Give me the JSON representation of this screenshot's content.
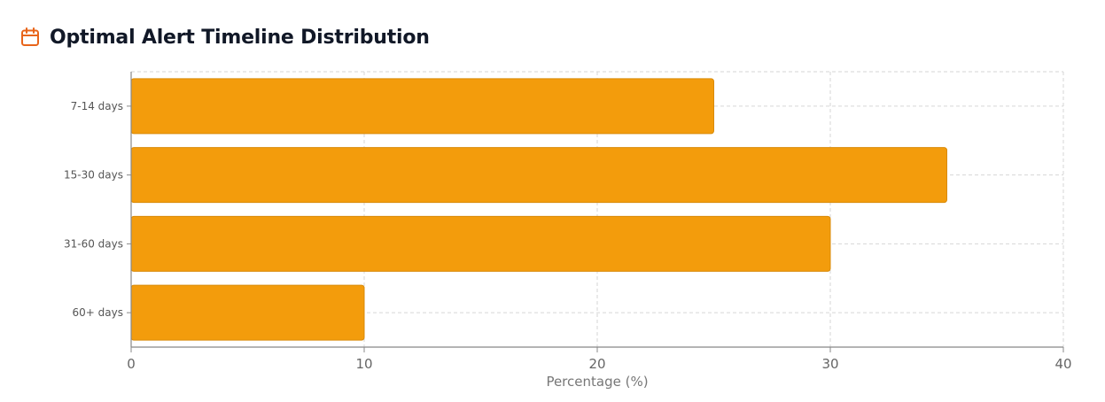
{
  "header": {
    "title": "Optimal Alert Timeline Distribution",
    "icon": "calendar-icon"
  },
  "colors": {
    "accent_icon": "#E8651A",
    "bar_fill": "#F39C0C",
    "bar_stroke": "#D98A08",
    "grid": "#D6D6D6",
    "axis": "#888888"
  },
  "chart_data": {
    "type": "bar",
    "orientation": "horizontal",
    "title": "Optimal Alert Timeline Distribution",
    "categories": [
      "7-14 days",
      "15-30 days",
      "31-60 days",
      "60+ days"
    ],
    "values": [
      25,
      35,
      30,
      10
    ],
    "xlabel": "Percentage (%)",
    "ylabel": "",
    "xlim": [
      0,
      40
    ],
    "xticks": [
      0,
      10,
      20,
      30,
      40
    ],
    "grid": true,
    "legend": "none"
  }
}
